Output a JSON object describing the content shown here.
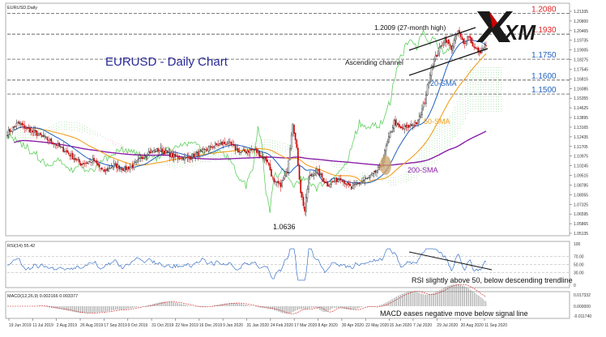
{
  "window": {
    "symbol_label": "EURUSD,Daily"
  },
  "logo": {
    "text": "XM"
  },
  "colors": {
    "bull": "#1a1a1a",
    "bear": "#cc0000",
    "sma20": "#1f5fbf",
    "sma50": "#f0a020",
    "sma200": "#8a1fa8",
    "cloud_green": "#31b531",
    "cloud_red": "#e05050",
    "level_red": "#e02020",
    "level_blue": "#1f5fbf",
    "chikou": "#60d060"
  },
  "chart_data": [
    {
      "type": "candlestick",
      "title": "EURUSD - Daily Chart",
      "x_tick_labels": [
        "19 Jun 2019",
        "11 Jul 2019",
        "2 Aug 2019",
        "26 Aug 2019",
        "17 Sep 2019",
        "9 Oct 2019",
        "31 Oct 2019",
        "22 Nov 2019",
        "16 Dec 2019",
        "9 Jan 2020",
        "31 Jan 2020",
        "24 Feb 2020",
        "17 Mar 2020",
        "8 Apr 2020",
        "30 Apr 2020",
        "22 May 2020",
        "15 Jun 2020",
        "7 Jul 2020",
        "29 Jul 2020",
        "20 Aug 2020",
        "11 Sep 2020"
      ],
      "y_tick_labels": [
        "1.21335",
        "1.20800",
        "1.20465",
        "1.19735",
        "1.19005",
        "1.18275",
        "1.17545",
        "1.16815",
        "1.16085",
        "1.15355",
        "1.14625",
        "1.13895",
        "1.13165",
        "1.12435",
        "1.11705",
        "1.10975",
        "1.10245",
        "1.09515",
        "1.08785",
        "1.08055",
        "1.07325",
        "1.06595",
        "1.05865",
        "1.05135"
      ],
      "ylim": [
        1.05,
        1.214
      ],
      "price_key": [
        [
          0,
          1.122
        ],
        [
          8,
          1.129
        ],
        [
          15,
          1.125
        ],
        [
          25,
          1.12
        ],
        [
          35,
          1.115
        ],
        [
          45,
          1.108
        ],
        [
          55,
          1.1
        ],
        [
          65,
          1.102
        ],
        [
          72,
          1.094
        ],
        [
          80,
          1.099
        ],
        [
          88,
          1.096
        ],
        [
          95,
          1.099
        ],
        [
          105,
          1.108
        ],
        [
          115,
          1.11
        ],
        [
          125,
          1.105
        ],
        [
          135,
          1.104
        ],
        [
          145,
          1.108
        ],
        [
          155,
          1.113
        ],
        [
          165,
          1.115
        ],
        [
          175,
          1.108
        ],
        [
          185,
          1.11
        ],
        [
          195,
          1.102
        ],
        [
          200,
          1.086
        ],
        [
          205,
          1.085
        ],
        [
          210,
          1.095
        ],
        [
          214,
          1.13
        ],
        [
          217,
          1.11
        ],
        [
          220,
          1.08
        ],
        [
          223,
          1.066
        ],
        [
          226,
          1.09
        ],
        [
          232,
          1.095
        ],
        [
          240,
          1.085
        ],
        [
          250,
          1.09
        ],
        [
          258,
          1.082
        ],
        [
          265,
          1.087
        ],
        [
          272,
          1.09
        ],
        [
          280,
          1.098
        ],
        [
          285,
          1.115
        ],
        [
          290,
          1.13
        ],
        [
          295,
          1.125
        ],
        [
          302,
          1.127
        ],
        [
          308,
          1.13
        ],
        [
          313,
          1.145
        ],
        [
          318,
          1.17
        ],
        [
          323,
          1.18
        ],
        [
          328,
          1.19
        ],
        [
          333,
          1.183
        ],
        [
          338,
          1.195
        ],
        [
          342,
          1.186
        ],
        [
          346,
          1.192
        ],
        [
          350,
          1.183
        ],
        [
          354,
          1.18
        ],
        [
          358,
          1.184
        ]
      ],
      "moving_averages": [
        {
          "name": "20-SMA",
          "period": 20
        },
        {
          "name": "50-SMA",
          "period": 50
        },
        {
          "name": "200-SMA",
          "period": 200
        }
      ],
      "levels": [
        {
          "label": "1.2080",
          "value": 1.208,
          "color": "red"
        },
        {
          "label": "1.1930",
          "value": 1.193,
          "color": "red"
        },
        {
          "label": "1.1750",
          "value": 1.175,
          "color": "blue"
        },
        {
          "label": "1.1600",
          "value": 1.16,
          "color": "blue"
        },
        {
          "label": "1.1500",
          "value": 1.15,
          "color": "blue"
        }
      ],
      "annotations": [
        {
          "text": "1.2009 (27-month high)"
        },
        {
          "text": "Ascending channel"
        },
        {
          "text": "20-SMA"
        },
        {
          "text": "50-SMA"
        },
        {
          "text": "200-SMA"
        },
        {
          "text": "1.0636"
        }
      ]
    },
    {
      "type": "line",
      "title": "RSI(14) 55.42",
      "ylim": [
        0,
        100
      ],
      "y_tick_labels": [
        "100",
        "70.00",
        "50.00",
        "30.00",
        "0"
      ],
      "annotation": "RSI slightly above 50, below descending trendline"
    },
    {
      "type": "histogram",
      "title": "MACD(12,26,9) 0.002166 0.003377",
      "y_tick_labels": [
        "0.017332",
        "0.000000",
        "-0.011740"
      ],
      "annotation": "MACD eases negative move below signal line"
    }
  ]
}
